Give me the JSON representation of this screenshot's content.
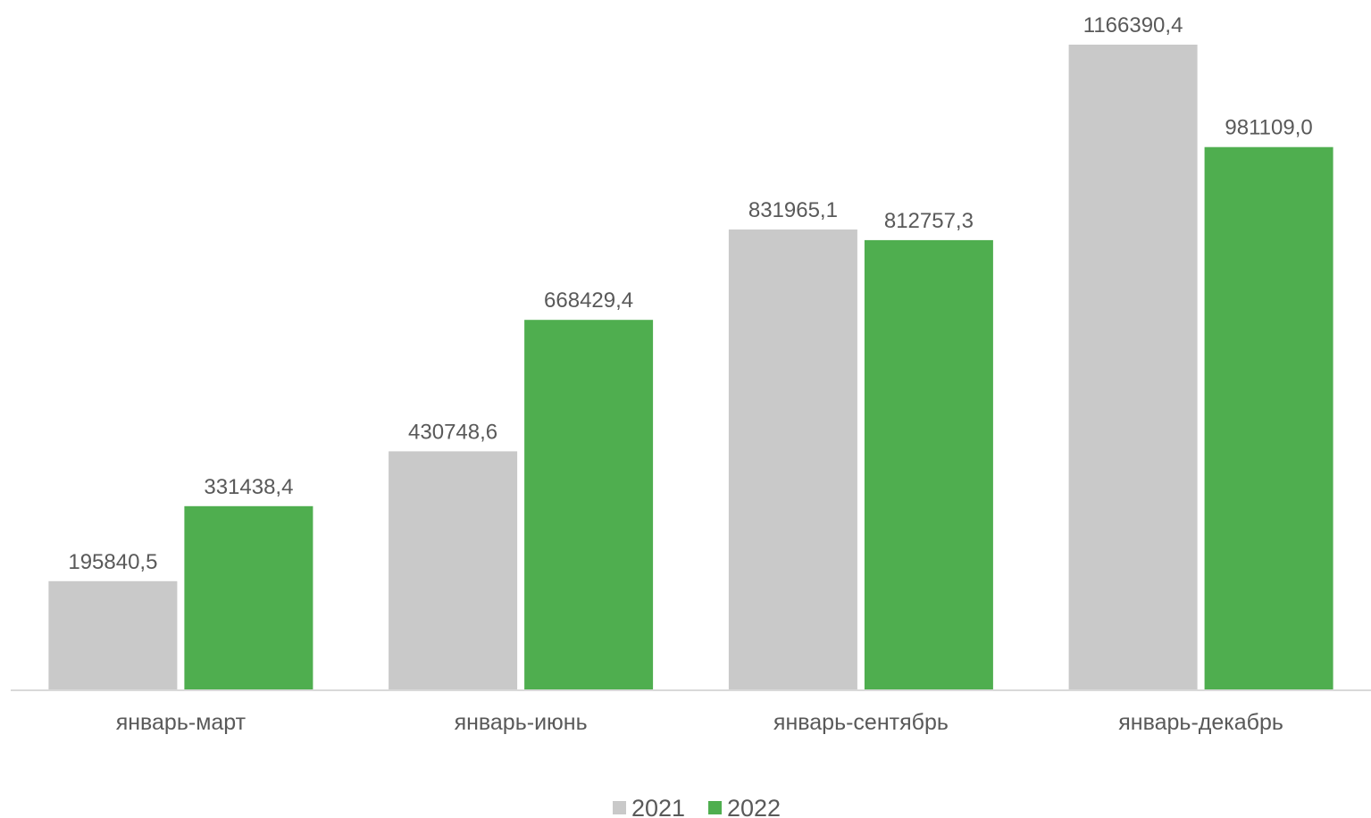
{
  "chart_data": {
    "type": "bar",
    "categories": [
      "январь-март",
      "январь-июнь",
      "январь-сентябрь",
      "январь-декабрь"
    ],
    "series": [
      {
        "name": "2021",
        "color": "#c9c9c9",
        "values": [
          195840.5,
          430748.6,
          831965.1,
          1166390.4
        ],
        "labels": [
          "195840,5",
          "430748,6",
          "831965,1",
          "1166390,4"
        ]
      },
      {
        "name": "2022",
        "color": "#4fae4f",
        "values": [
          331438.4,
          668429.4,
          812757.3,
          981109.0
        ],
        "labels": [
          "331438,4",
          "668429,4",
          "812757,3",
          "981109,0"
        ]
      }
    ],
    "ylim": [
      0,
      1166390.4
    ],
    "grid": false,
    "legend_position": "bottom",
    "axis_color": "#d9d9d9"
  }
}
